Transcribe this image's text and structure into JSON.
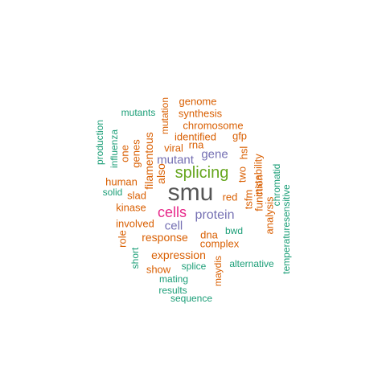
{
  "palette": {
    "teal": "#1b9e77",
    "orange": "#d95f02",
    "purple": "#7570b3",
    "magenta": "#e7298a",
    "green": "#66a61e",
    "gray": "#555555"
  },
  "words": [
    {
      "text": "smu",
      "color": "gray",
      "vertical": false
    },
    {
      "text": "splicing",
      "color": "green",
      "vertical": false
    },
    {
      "text": "cells",
      "color": "magenta",
      "vertical": false
    },
    {
      "text": "protein",
      "color": "purple",
      "vertical": false
    },
    {
      "text": "cell",
      "color": "purple",
      "vertical": false
    },
    {
      "text": "gene",
      "color": "purple",
      "vertical": false
    },
    {
      "text": "mutant",
      "color": "purple",
      "vertical": false
    },
    {
      "text": "genome",
      "color": "orange",
      "vertical": false
    },
    {
      "text": "mutants",
      "color": "teal",
      "vertical": false
    },
    {
      "text": "synthesis",
      "color": "orange",
      "vertical": false
    },
    {
      "text": "chromosome",
      "color": "orange",
      "vertical": false
    },
    {
      "text": "identified",
      "color": "orange",
      "vertical": false
    },
    {
      "text": "rna",
      "color": "orange",
      "vertical": false
    },
    {
      "text": "gfp",
      "color": "orange",
      "vertical": false
    },
    {
      "text": "viral",
      "color": "orange",
      "vertical": false
    },
    {
      "text": "human",
      "color": "orange",
      "vertical": false
    },
    {
      "text": "solid",
      "color": "teal",
      "vertical": false
    },
    {
      "text": "slad",
      "color": "orange",
      "vertical": false
    },
    {
      "text": "kinase",
      "color": "orange",
      "vertical": false
    },
    {
      "text": "red",
      "color": "orange",
      "vertical": false
    },
    {
      "text": "involved",
      "color": "orange",
      "vertical": false
    },
    {
      "text": "dna",
      "color": "orange",
      "vertical": false
    },
    {
      "text": "bwd",
      "color": "teal",
      "vertical": false
    },
    {
      "text": "response",
      "color": "orange",
      "vertical": false
    },
    {
      "text": "complex",
      "color": "orange",
      "vertical": false
    },
    {
      "text": "expression",
      "color": "orange",
      "vertical": false
    },
    {
      "text": "show",
      "color": "orange",
      "vertical": false
    },
    {
      "text": "splice",
      "color": "teal",
      "vertical": false
    },
    {
      "text": "alternative",
      "color": "teal",
      "vertical": false
    },
    {
      "text": "mating",
      "color": "teal",
      "vertical": false
    },
    {
      "text": "results",
      "color": "teal",
      "vertical": false
    },
    {
      "text": "sequence",
      "color": "teal",
      "vertical": false
    },
    {
      "text": "production",
      "color": "teal",
      "vertical": true
    },
    {
      "text": "influenza",
      "color": "teal",
      "vertical": true
    },
    {
      "text": "one",
      "color": "orange",
      "vertical": true
    },
    {
      "text": "genes",
      "color": "orange",
      "vertical": true
    },
    {
      "text": "filamentous",
      "color": "orange",
      "vertical": true
    },
    {
      "text": "also",
      "color": "orange",
      "vertical": true
    },
    {
      "text": "mutation",
      "color": "orange",
      "vertical": true
    },
    {
      "text": "two",
      "color": "orange",
      "vertical": true
    },
    {
      "text": "hsl",
      "color": "orange",
      "vertical": true
    },
    {
      "text": "tsfm",
      "color": "orange",
      "vertical": true
    },
    {
      "text": "function",
      "color": "orange",
      "vertical": true
    },
    {
      "text": "instability",
      "color": "orange",
      "vertical": true
    },
    {
      "text": "analysis",
      "color": "orange",
      "vertical": true
    },
    {
      "text": "chromatid",
      "color": "teal",
      "vertical": true
    },
    {
      "text": "temperaturesensitive",
      "color": "teal",
      "vertical": true
    },
    {
      "text": "role",
      "color": "orange",
      "vertical": true
    },
    {
      "text": "short",
      "color": "teal",
      "vertical": true
    },
    {
      "text": "maydis",
      "color": "orange",
      "vertical": true
    }
  ]
}
